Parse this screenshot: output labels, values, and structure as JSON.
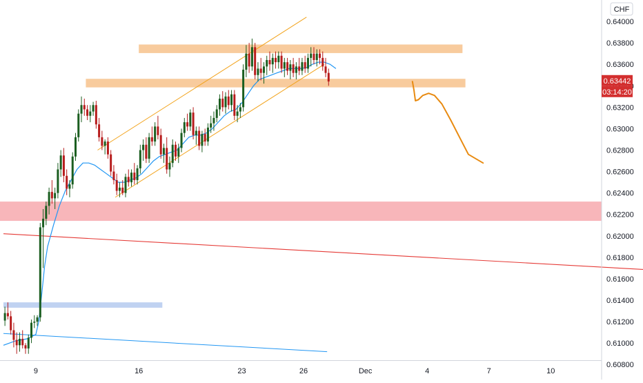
{
  "chart_data": {
    "type": "candlestick",
    "currency_label": "CHF",
    "ylim": [
      0.6066,
      0.642
    ],
    "y_ticks": [
      "0.64000",
      "0.63800",
      "0.63600",
      "0.63400",
      "0.63200",
      "0.63000",
      "0.62800",
      "0.62600",
      "0.62400",
      "0.62200",
      "0.62000",
      "0.61800",
      "0.61600",
      "0.61400",
      "0.61200",
      "0.61000",
      "0.60800"
    ],
    "y_tick_values": [
      0.64,
      0.638,
      0.636,
      0.634,
      0.632,
      0.63,
      0.628,
      0.626,
      0.624,
      0.622,
      0.62,
      0.618,
      0.616,
      0.614,
      0.612,
      0.61,
      0.608
    ],
    "x_ticks": [
      {
        "label": "9",
        "bar": 11
      },
      {
        "label": "16",
        "bar": 46
      },
      {
        "label": "23",
        "bar": 81
      },
      {
        "label": "26",
        "bar": 102
      },
      {
        "label": "Dec",
        "bar": 123
      },
      {
        "label": "4",
        "bar": 144
      },
      {
        "label": "7",
        "bar": 165
      },
      {
        "label": "10",
        "bar": 186
      }
    ],
    "price_badge": {
      "value": "0.63442",
      "countdown": "03:14:20",
      "color": "#d32f2f"
    },
    "colors": {
      "up": "#1b5e20",
      "down": "#b71c1c",
      "ma": "#2196f3",
      "channel": "#f2a31c",
      "projection": "#e88a10"
    },
    "candles": [
      [
        0.6121,
        0.6134,
        0.6116,
        0.6128
      ],
      [
        0.6128,
        0.6138,
        0.6122,
        0.6125
      ],
      [
        0.6125,
        0.613,
        0.6108,
        0.6112
      ],
      [
        0.6112,
        0.6119,
        0.6096,
        0.6103
      ],
      [
        0.6103,
        0.611,
        0.609,
        0.6098
      ],
      [
        0.6098,
        0.611,
        0.6092,
        0.6104
      ],
      [
        0.6104,
        0.6112,
        0.6095,
        0.6098
      ],
      [
        0.6098,
        0.61,
        0.609,
        0.6095
      ],
      [
        0.6095,
        0.6108,
        0.609,
        0.6105
      ],
      [
        0.6105,
        0.6122,
        0.61,
        0.6119
      ],
      [
        0.6119,
        0.6126,
        0.6114,
        0.612
      ],
      [
        0.612,
        0.6126,
        0.6116,
        0.6124
      ],
      [
        0.6124,
        0.6212,
        0.612,
        0.6208
      ],
      [
        0.6208,
        0.6225,
        0.617,
        0.6216
      ],
      [
        0.6216,
        0.6232,
        0.621,
        0.6228
      ],
      [
        0.6228,
        0.6245,
        0.622,
        0.6241
      ],
      [
        0.6241,
        0.6252,
        0.623,
        0.6235
      ],
      [
        0.6235,
        0.6245,
        0.6225,
        0.624
      ],
      [
        0.624,
        0.6268,
        0.6235,
        0.6262
      ],
      [
        0.6262,
        0.628,
        0.6255,
        0.6275
      ],
      [
        0.6275,
        0.6282,
        0.625,
        0.6256
      ],
      [
        0.6256,
        0.6262,
        0.6238,
        0.6244
      ],
      [
        0.6244,
        0.6252,
        0.6236,
        0.6248
      ],
      [
        0.6248,
        0.6278,
        0.6244,
        0.6274
      ],
      [
        0.6274,
        0.6296,
        0.627,
        0.6292
      ],
      [
        0.6292,
        0.6318,
        0.6288,
        0.6314
      ],
      [
        0.6314,
        0.633,
        0.6306,
        0.6322
      ],
      [
        0.6322,
        0.6328,
        0.6312,
        0.6318
      ],
      [
        0.6318,
        0.6322,
        0.6308,
        0.6312
      ],
      [
        0.6312,
        0.6322,
        0.6306,
        0.6316
      ],
      [
        0.6316,
        0.6325,
        0.6312,
        0.6322
      ],
      [
        0.6322,
        0.6326,
        0.63,
        0.6304
      ],
      [
        0.6304,
        0.631,
        0.6288,
        0.6292
      ],
      [
        0.6292,
        0.6298,
        0.628,
        0.6284
      ],
      [
        0.6284,
        0.629,
        0.6276,
        0.6288
      ],
      [
        0.6288,
        0.6292,
        0.6272,
        0.6276
      ],
      [
        0.6276,
        0.628,
        0.6256,
        0.626
      ],
      [
        0.626,
        0.6266,
        0.6248,
        0.6252
      ],
      [
        0.6252,
        0.6258,
        0.6238,
        0.6242
      ],
      [
        0.6242,
        0.625,
        0.6236,
        0.6245
      ],
      [
        0.6245,
        0.6252,
        0.6238,
        0.624
      ],
      [
        0.624,
        0.6258,
        0.6236,
        0.6255
      ],
      [
        0.6255,
        0.6262,
        0.6246,
        0.625
      ],
      [
        0.625,
        0.6262,
        0.6246,
        0.6259
      ],
      [
        0.6259,
        0.6268,
        0.6248,
        0.6252
      ],
      [
        0.6252,
        0.6266,
        0.6248,
        0.6263
      ],
      [
        0.6263,
        0.6285,
        0.6258,
        0.628
      ],
      [
        0.628,
        0.629,
        0.627,
        0.6285
      ],
      [
        0.6285,
        0.6292,
        0.6268,
        0.6272
      ],
      [
        0.6272,
        0.6296,
        0.6268,
        0.6292
      ],
      [
        0.6292,
        0.6302,
        0.6284,
        0.6288
      ],
      [
        0.6288,
        0.6306,
        0.6284,
        0.6302
      ],
      [
        0.6302,
        0.6312,
        0.629,
        0.6294
      ],
      [
        0.6294,
        0.63,
        0.6272,
        0.6276
      ],
      [
        0.6276,
        0.6286,
        0.6268,
        0.6282
      ],
      [
        0.6282,
        0.6292,
        0.6258,
        0.6262
      ],
      [
        0.6262,
        0.6274,
        0.6255,
        0.6268
      ],
      [
        0.6268,
        0.629,
        0.6264,
        0.6285
      ],
      [
        0.6285,
        0.6288,
        0.627,
        0.6274
      ],
      [
        0.6274,
        0.6286,
        0.6268,
        0.6282
      ],
      [
        0.6282,
        0.63,
        0.6278,
        0.6296
      ],
      [
        0.6296,
        0.631,
        0.6292,
        0.6306
      ],
      [
        0.6306,
        0.6314,
        0.6298,
        0.6302
      ],
      [
        0.6302,
        0.6318,
        0.6298,
        0.6315
      ],
      [
        0.6315,
        0.632,
        0.629,
        0.6294
      ],
      [
        0.6294,
        0.6302,
        0.6285,
        0.6298
      ],
      [
        0.6298,
        0.6302,
        0.628,
        0.6284
      ],
      [
        0.6284,
        0.6298,
        0.6278,
        0.6295
      ],
      [
        0.6295,
        0.63,
        0.6284,
        0.6288
      ],
      [
        0.6288,
        0.6305,
        0.6284,
        0.6301
      ],
      [
        0.6301,
        0.6312,
        0.6296,
        0.6305
      ],
      [
        0.6305,
        0.6316,
        0.6298,
        0.631
      ],
      [
        0.631,
        0.6322,
        0.6306,
        0.6318
      ],
      [
        0.6318,
        0.6332,
        0.6312,
        0.6328
      ],
      [
        0.6328,
        0.6335,
        0.6316,
        0.632
      ],
      [
        0.632,
        0.6334,
        0.6314,
        0.633
      ],
      [
        0.633,
        0.6336,
        0.6318,
        0.6322
      ],
      [
        0.6322,
        0.6336,
        0.6316,
        0.6332
      ],
      [
        0.6332,
        0.6336,
        0.6308,
        0.6312
      ],
      [
        0.6312,
        0.6322,
        0.6306,
        0.6316
      ],
      [
        0.6316,
        0.6324,
        0.631,
        0.632
      ],
      [
        0.632,
        0.636,
        0.6316,
        0.6355
      ],
      [
        0.6355,
        0.6378,
        0.6348,
        0.637
      ],
      [
        0.637,
        0.638,
        0.6352,
        0.6358
      ],
      [
        0.6358,
        0.6384,
        0.6354,
        0.6376
      ],
      [
        0.6376,
        0.638,
        0.6346,
        0.635
      ],
      [
        0.635,
        0.6362,
        0.6344,
        0.6356
      ],
      [
        0.6356,
        0.6366,
        0.6345,
        0.6352
      ],
      [
        0.6352,
        0.6362,
        0.6342,
        0.6358
      ],
      [
        0.6358,
        0.6368,
        0.635,
        0.6364
      ],
      [
        0.6364,
        0.6372,
        0.6354,
        0.636
      ],
      [
        0.636,
        0.637,
        0.6352,
        0.6366
      ],
      [
        0.6366,
        0.6372,
        0.6356,
        0.6362
      ],
      [
        0.6362,
        0.6372,
        0.6356,
        0.6368
      ],
      [
        0.6368,
        0.6372,
        0.6352,
        0.6356
      ],
      [
        0.6356,
        0.6366,
        0.6348,
        0.6362
      ],
      [
        0.6362,
        0.6366,
        0.635,
        0.6354
      ],
      [
        0.6354,
        0.6364,
        0.6346,
        0.636
      ],
      [
        0.636,
        0.6366,
        0.6348,
        0.6352
      ],
      [
        0.6352,
        0.6362,
        0.6346,
        0.6358
      ],
      [
        0.6358,
        0.6366,
        0.635,
        0.6354
      ],
      [
        0.6354,
        0.6366,
        0.635,
        0.6362
      ],
      [
        0.6362,
        0.6368,
        0.6352,
        0.6356
      ],
      [
        0.6356,
        0.637,
        0.6352,
        0.6366
      ],
      [
        0.6366,
        0.6376,
        0.6358,
        0.637
      ],
      [
        0.637,
        0.6376,
        0.636,
        0.6364
      ],
      [
        0.6364,
        0.6374,
        0.6358,
        0.637
      ],
      [
        0.637,
        0.6374,
        0.636,
        0.6366
      ],
      [
        0.6366,
        0.6372,
        0.6354,
        0.6358
      ],
      [
        0.6358,
        0.6366,
        0.6348,
        0.6352
      ],
      [
        0.6352,
        0.6356,
        0.634,
        0.6344
      ]
    ],
    "ma_series": [
      [
        0,
        0.6098
      ],
      [
        4,
        0.6102
      ],
      [
        8,
        0.6104
      ],
      [
        11,
        0.6108
      ],
      [
        12,
        0.612
      ],
      [
        13,
        0.6145
      ],
      [
        14,
        0.6172
      ],
      [
        15,
        0.619
      ],
      [
        17,
        0.621
      ],
      [
        19,
        0.6228
      ],
      [
        21,
        0.6242
      ],
      [
        23,
        0.6252
      ],
      [
        25,
        0.6262
      ],
      [
        27,
        0.6268
      ],
      [
        29,
        0.6268
      ],
      [
        31,
        0.6266
      ],
      [
        33,
        0.6262
      ],
      [
        35,
        0.6258
      ],
      [
        37,
        0.6254
      ],
      [
        39,
        0.625
      ],
      [
        41,
        0.625
      ],
      [
        43,
        0.6252
      ],
      [
        45,
        0.6254
      ],
      [
        47,
        0.6258
      ],
      [
        49,
        0.6264
      ],
      [
        51,
        0.627
      ],
      [
        53,
        0.6274
      ],
      [
        55,
        0.6276
      ],
      [
        57,
        0.6278
      ],
      [
        59,
        0.628
      ],
      [
        61,
        0.6286
      ],
      [
        63,
        0.6292
      ],
      [
        65,
        0.6294
      ],
      [
        67,
        0.6294
      ],
      [
        69,
        0.6296
      ],
      [
        71,
        0.63
      ],
      [
        73,
        0.6306
      ],
      [
        75,
        0.6312
      ],
      [
        77,
        0.6316
      ],
      [
        79,
        0.6318
      ],
      [
        81,
        0.6324
      ],
      [
        83,
        0.6332
      ],
      [
        85,
        0.634
      ],
      [
        87,
        0.6346
      ],
      [
        89,
        0.6348
      ],
      [
        91,
        0.635
      ],
      [
        93,
        0.6352
      ],
      [
        95,
        0.6354
      ],
      [
        97,
        0.6356
      ],
      [
        99,
        0.6356
      ],
      [
        101,
        0.6356
      ],
      [
        103,
        0.6357
      ],
      [
        105,
        0.636
      ],
      [
        107,
        0.6362
      ],
      [
        109,
        0.6362
      ],
      [
        111,
        0.636
      ],
      [
        113,
        0.6356
      ]
    ],
    "channel": {
      "upper": [
        [
          32,
          0.628
        ],
        [
          103,
          0.6404
        ]
      ],
      "lower": [
        [
          38,
          0.6236
        ],
        [
          109,
          0.636
        ]
      ]
    },
    "resistance_zones": [
      {
        "bar_from": 46,
        "bar_to": 156,
        "low": 0.63705,
        "high": 0.63785,
        "color": "#f7c28c"
      },
      {
        "bar_from": 28,
        "bar_to": 157,
        "low": 0.63385,
        "high": 0.63465,
        "color": "#f7c28c"
      }
    ],
    "support_zone": {
      "low": 0.6214,
      "high": 0.6232,
      "color": "#f7a9ae"
    },
    "blue_zone": {
      "bar_from": 0,
      "bar_to": 54,
      "low": 0.6133,
      "high": 0.6138,
      "color": "#b9cdf0"
    },
    "trend_red": [
      [
        0,
        0.6202
      ],
      [
        248,
        0.6164
      ]
    ],
    "trend_blue": [
      [
        0,
        0.6109
      ],
      [
        110,
        0.6092
      ]
    ],
    "projection": [
      [
        139.0,
        0.6344
      ],
      [
        139.5,
        0.6336
      ],
      [
        140.0,
        0.6326
      ],
      [
        141.0,
        0.6327
      ],
      [
        142.5,
        0.6331
      ],
      [
        144.5,
        0.6333
      ],
      [
        146.5,
        0.6331
      ],
      [
        149.0,
        0.6323
      ],
      [
        152.0,
        0.6308
      ],
      [
        155.0,
        0.6292
      ],
      [
        158.0,
        0.6276
      ],
      [
        163.0,
        0.6268
      ]
    ]
  }
}
